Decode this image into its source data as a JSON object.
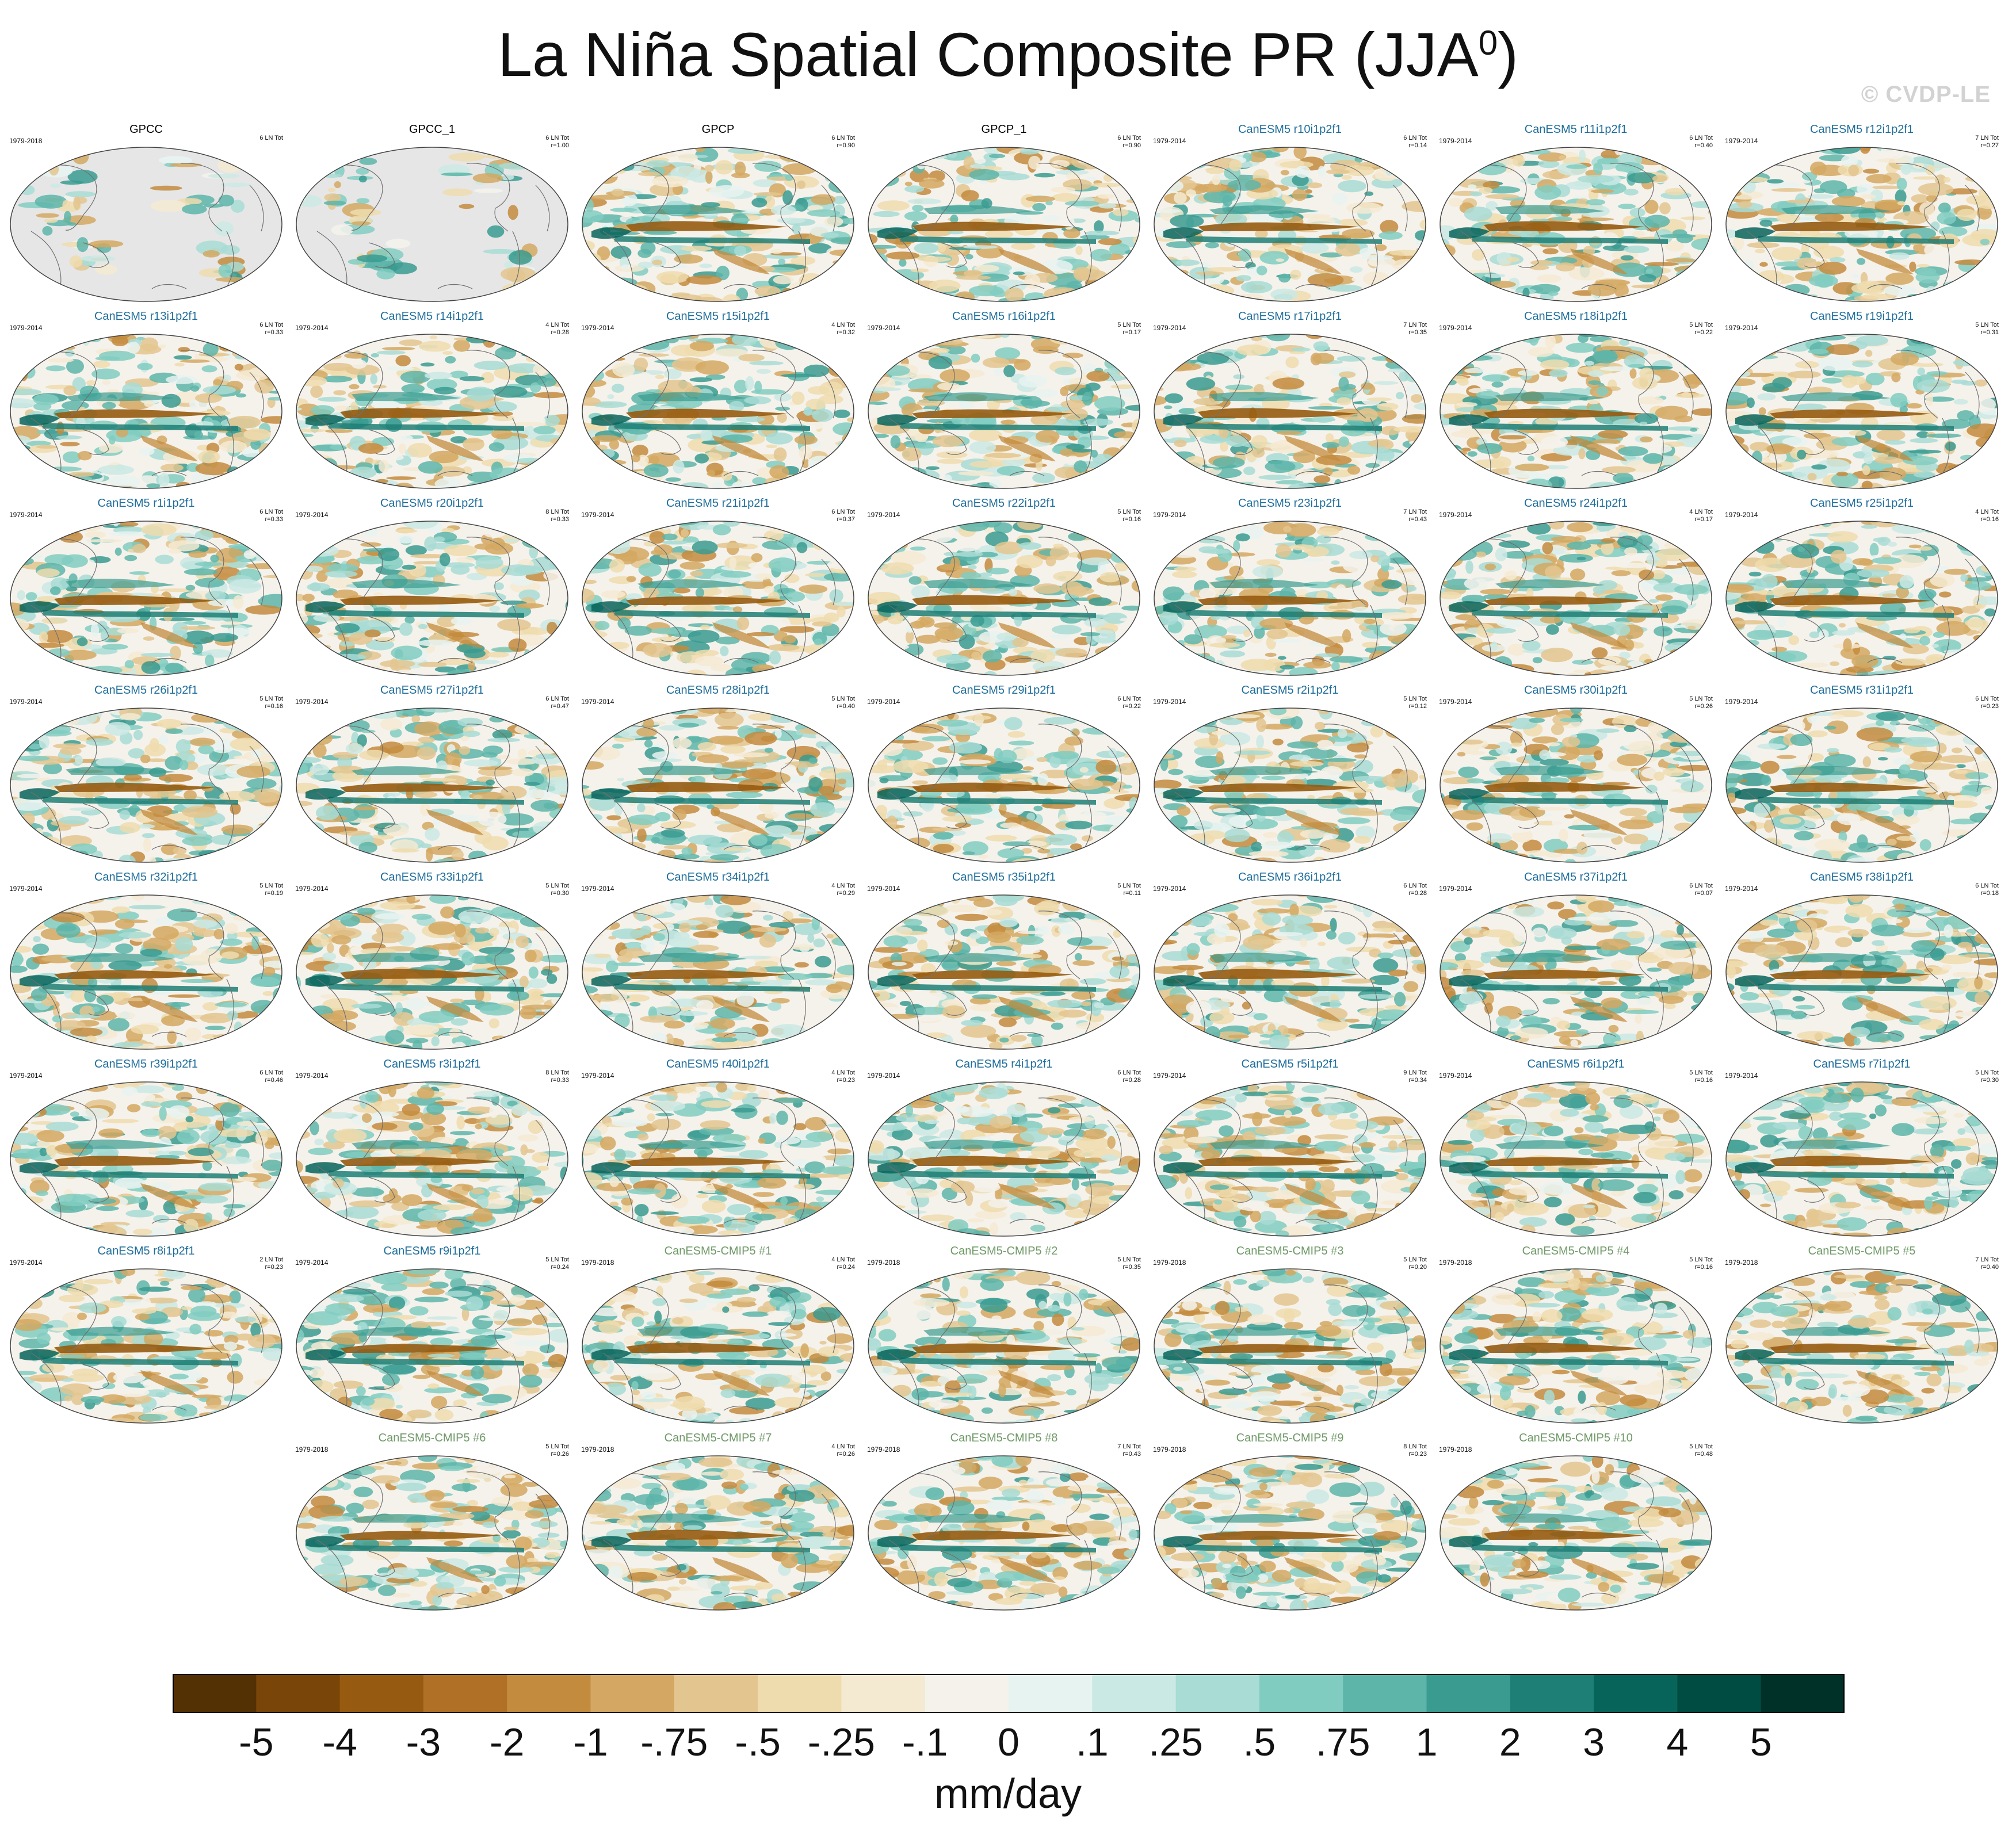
{
  "title": "La Niña Spatial Composite PR (JJA",
  "title_sup": "0",
  "title_close": ")",
  "watermark": "© CVDP-LE",
  "colors": {
    "obs_title": "#000000",
    "canesm5_title": "#1f6e9c",
    "cmip5_title": "#6f9a67",
    "land_missing": "#e6e6e6",
    "coast": "#707070"
  },
  "chart_data": {
    "type": "heatmap",
    "projection": "Robinson, Pacific-centered",
    "units": "mm/day",
    "colorbar": {
      "labels": [
        "-5",
        "-4",
        "-3",
        "-2",
        "-1",
        "-.75",
        "-.5",
        "-.25",
        "-.1",
        "0",
        ".1",
        ".25",
        ".5",
        ".75",
        "1",
        "2",
        "3",
        "4",
        "5"
      ],
      "colors": [
        "#543005",
        "#7a4508",
        "#965b11",
        "#b07126",
        "#c38b3e",
        "#d4a862",
        "#e3c68f",
        "#efdcae",
        "#f4ead2",
        "#f5f2ec",
        "#e7f3f1",
        "#cbe9e4",
        "#a8dcd5",
        "#81ccc1",
        "#5db5a9",
        "#3a9b90",
        "#1e7f76",
        "#07645b",
        "#004b42",
        "#003129"
      ]
    },
    "panels": [
      {
        "name": "GPCC",
        "years": "1979-2018",
        "count": "6 LN Tot",
        "r": "",
        "group": "obs",
        "land_only": true
      },
      {
        "name": "GPCC_1",
        "years": "",
        "count": "6 LN Tot",
        "r": "r=1.00",
        "group": "obs",
        "land_only": true
      },
      {
        "name": "GPCP",
        "years": "",
        "count": "6 LN Tot",
        "r": "r=0.90",
        "group": "obs",
        "land_only": false
      },
      {
        "name": "GPCP_1",
        "years": "",
        "count": "6 LN Tot",
        "r": "r=0.90",
        "group": "obs",
        "land_only": false
      },
      {
        "name": "CanESM5 r10i1p2f1",
        "years": "1979-2014",
        "count": "6 LN Tot",
        "r": "r=0.14",
        "group": "model"
      },
      {
        "name": "CanESM5 r11i1p2f1",
        "years": "1979-2014",
        "count": "6 LN Tot",
        "r": "r=0.40",
        "group": "model"
      },
      {
        "name": "CanESM5 r12i1p2f1",
        "years": "1979-2014",
        "count": "7 LN Tot",
        "r": "r=0.27",
        "group": "model"
      },
      {
        "name": "CanESM5 r13i1p2f1",
        "years": "1979-2014",
        "count": "6 LN Tot",
        "r": "r=0.33",
        "group": "model"
      },
      {
        "name": "CanESM5 r14i1p2f1",
        "years": "1979-2014",
        "count": "4 LN Tot",
        "r": "r=0.28",
        "group": "model"
      },
      {
        "name": "CanESM5 r15i1p2f1",
        "years": "1979-2014",
        "count": "4 LN Tot",
        "r": "r=0.32",
        "group": "model"
      },
      {
        "name": "CanESM5 r16i1p2f1",
        "years": "1979-2014",
        "count": "5 LN Tot",
        "r": "r=0.17",
        "group": "model"
      },
      {
        "name": "CanESM5 r17i1p2f1",
        "years": "1979-2014",
        "count": "7 LN Tot",
        "r": "r=0.35",
        "group": "model"
      },
      {
        "name": "CanESM5 r18i1p2f1",
        "years": "1979-2014",
        "count": "5 LN Tot",
        "r": "r=0.22",
        "group": "model"
      },
      {
        "name": "CanESM5 r19i1p2f1",
        "years": "1979-2014",
        "count": "5 LN Tot",
        "r": "r=0.31",
        "group": "model"
      },
      {
        "name": "CanESM5 r1i1p2f1",
        "years": "1979-2014",
        "count": "6 LN Tot",
        "r": "r=0.33",
        "group": "model"
      },
      {
        "name": "CanESM5 r20i1p2f1",
        "years": "1979-2014",
        "count": "8 LN Tot",
        "r": "r=0.33",
        "group": "model"
      },
      {
        "name": "CanESM5 r21i1p2f1",
        "years": "1979-2014",
        "count": "6 LN Tot",
        "r": "r=0.37",
        "group": "model"
      },
      {
        "name": "CanESM5 r22i1p2f1",
        "years": "1979-2014",
        "count": "5 LN Tot",
        "r": "r=0.16",
        "group": "model"
      },
      {
        "name": "CanESM5 r23i1p2f1",
        "years": "1979-2014",
        "count": "7 LN Tot",
        "r": "r=0.43",
        "group": "model"
      },
      {
        "name": "CanESM5 r24i1p2f1",
        "years": "1979-2014",
        "count": "4 LN Tot",
        "r": "r=0.17",
        "group": "model"
      },
      {
        "name": "CanESM5 r25i1p2f1",
        "years": "1979-2014",
        "count": "4 LN Tot",
        "r": "r=0.16",
        "group": "model"
      },
      {
        "name": "CanESM5 r26i1p2f1",
        "years": "1979-2014",
        "count": "5 LN Tot",
        "r": "r=0.16",
        "group": "model"
      },
      {
        "name": "CanESM5 r27i1p2f1",
        "years": "1979-2014",
        "count": "6 LN Tot",
        "r": "r=0.47",
        "group": "model"
      },
      {
        "name": "CanESM5 r28i1p2f1",
        "years": "1979-2014",
        "count": "5 LN Tot",
        "r": "r=0.40",
        "group": "model"
      },
      {
        "name": "CanESM5 r29i1p2f1",
        "years": "1979-2014",
        "count": "6 LN Tot",
        "r": "r=0.22",
        "group": "model"
      },
      {
        "name": "CanESM5 r2i1p2f1",
        "years": "1979-2014",
        "count": "5 LN Tot",
        "r": "r=0.12",
        "group": "model"
      },
      {
        "name": "CanESM5 r30i1p2f1",
        "years": "1979-2014",
        "count": "5 LN Tot",
        "r": "r=0.26",
        "group": "model"
      },
      {
        "name": "CanESM5 r31i1p2f1",
        "years": "1979-2014",
        "count": "6 LN Tot",
        "r": "r=0.23",
        "group": "model"
      },
      {
        "name": "CanESM5 r32i1p2f1",
        "years": "1979-2014",
        "count": "5 LN Tot",
        "r": "r=0.19",
        "group": "model"
      },
      {
        "name": "CanESM5 r33i1p2f1",
        "years": "1979-2014",
        "count": "5 LN Tot",
        "r": "r=0.30",
        "group": "model"
      },
      {
        "name": "CanESM5 r34i1p2f1",
        "years": "1979-2014",
        "count": "4 LN Tot",
        "r": "r=0.29",
        "group": "model"
      },
      {
        "name": "CanESM5 r35i1p2f1",
        "years": "1979-2014",
        "count": "5 LN Tot",
        "r": "r=0.11",
        "group": "model"
      },
      {
        "name": "CanESM5 r36i1p2f1",
        "years": "1979-2014",
        "count": "6 LN Tot",
        "r": "r=0.28",
        "group": "model"
      },
      {
        "name": "CanESM5 r37i1p2f1",
        "years": "1979-2014",
        "count": "6 LN Tot",
        "r": "r=0.07",
        "group": "model"
      },
      {
        "name": "CanESM5 r38i1p2f1",
        "years": "1979-2014",
        "count": "6 LN Tot",
        "r": "r=0.18",
        "group": "model"
      },
      {
        "name": "CanESM5 r39i1p2f1",
        "years": "1979-2014",
        "count": "6 LN Tot",
        "r": "r=0.46",
        "group": "model"
      },
      {
        "name": "CanESM5 r3i1p2f1",
        "years": "1979-2014",
        "count": "8 LN Tot",
        "r": "r=0.33",
        "group": "model"
      },
      {
        "name": "CanESM5 r40i1p2f1",
        "years": "1979-2014",
        "count": "4 LN Tot",
        "r": "r=0.23",
        "group": "model"
      },
      {
        "name": "CanESM5 r4i1p2f1",
        "years": "1979-2014",
        "count": "6 LN Tot",
        "r": "r=0.28",
        "group": "model"
      },
      {
        "name": "CanESM5 r5i1p2f1",
        "years": "1979-2014",
        "count": "9 LN Tot",
        "r": "r=0.34",
        "group": "model"
      },
      {
        "name": "CanESM5 r6i1p2f1",
        "years": "1979-2014",
        "count": "5 LN Tot",
        "r": "r=0.16",
        "group": "model"
      },
      {
        "name": "CanESM5 r7i1p2f1",
        "years": "1979-2014",
        "count": "5 LN Tot",
        "r": "r=0.30",
        "group": "model"
      },
      {
        "name": "CanESM5 r8i1p2f1",
        "years": "1979-2014",
        "count": "2 LN Tot",
        "r": "r=0.23",
        "group": "model"
      },
      {
        "name": "CanESM5 r9i1p2f1",
        "years": "1979-2014",
        "count": "5 LN Tot",
        "r": "r=0.24",
        "group": "model"
      },
      {
        "name": "CanESM5-CMIP5 #1",
        "years": "1979-2018",
        "count": "4 LN Tot",
        "r": "r=0.24",
        "group": "cmip5"
      },
      {
        "name": "CanESM5-CMIP5 #2",
        "years": "1979-2018",
        "count": "5 LN Tot",
        "r": "r=0.35",
        "group": "cmip5"
      },
      {
        "name": "CanESM5-CMIP5 #3",
        "years": "1979-2018",
        "count": "5 LN Tot",
        "r": "r=0.20",
        "group": "cmip5"
      },
      {
        "name": "CanESM5-CMIP5 #4",
        "years": "1979-2018",
        "count": "5 LN Tot",
        "r": "r=0.16",
        "group": "cmip5"
      },
      {
        "name": "CanESM5-CMIP5 #5",
        "years": "1979-2018",
        "count": "7 LN Tot",
        "r": "r=0.40",
        "group": "cmip5"
      },
      {
        "name": "CanESM5-CMIP5 #6",
        "years": "1979-2018",
        "count": "5 LN Tot",
        "r": "r=0.26",
        "group": "cmip5"
      },
      {
        "name": "CanESM5-CMIP5 #7",
        "years": "1979-2018",
        "count": "4 LN Tot",
        "r": "r=0.26",
        "group": "cmip5"
      },
      {
        "name": "CanESM5-CMIP5 #8",
        "years": "1979-2018",
        "count": "7 LN Tot",
        "r": "r=0.43",
        "group": "cmip5"
      },
      {
        "name": "CanESM5-CMIP5 #9",
        "years": "1979-2018",
        "count": "8 LN Tot",
        "r": "r=0.23",
        "group": "cmip5"
      },
      {
        "name": "CanESM5-CMIP5 #10",
        "years": "1979-2018",
        "count": "5 LN Tot",
        "r": "r=0.48",
        "group": "cmip5"
      }
    ]
  }
}
